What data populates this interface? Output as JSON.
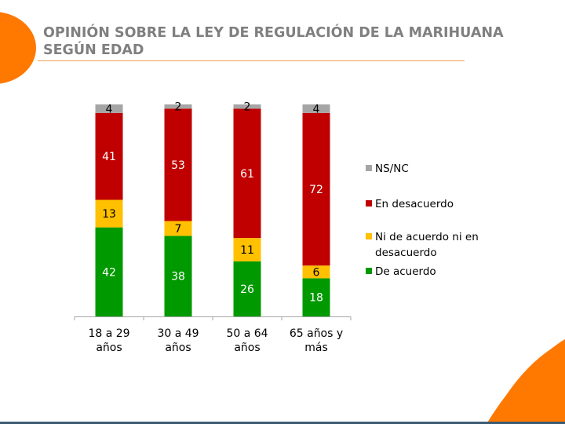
{
  "title_lines": [
    "OPINIÓN SOBRE LA LEY DE REGULACIÓN DE LA MARIHUANA",
    "SEGÚN EDAD"
  ],
  "colors": {
    "accent_orange": "#ff7800",
    "title_gray": "#7f7f7f",
    "ns_nc": "#a5a5a5",
    "desacuerdo": "#c00000",
    "neutral": "#ffc000",
    "acuerdo": "#009900"
  },
  "chart_data": {
    "type": "bar",
    "stacked": true,
    "title": "OPINIÓN SOBRE LA LEY DE REGULACIÓN DE LA MARIHUANA SEGÚN EDAD",
    "categories": [
      "18 a 29 años",
      "30 a 49 años",
      "50 a 64 años",
      "65 años y más"
    ],
    "category_lines": [
      [
        "18 a 29",
        "años"
      ],
      [
        "30 a 49",
        "años"
      ],
      [
        "50 a 64",
        "años"
      ],
      [
        "65 años y",
        "más"
      ]
    ],
    "series": [
      {
        "name": "De acuerdo",
        "color": "#009900",
        "label_color": "#ffffff",
        "values": [
          42,
          38,
          26,
          18
        ]
      },
      {
        "name": "Ni de acuerdo ni en desacuerdo",
        "color": "#ffc000",
        "label_color": "#000000",
        "values": [
          13,
          7,
          11,
          6
        ]
      },
      {
        "name": "En desacuerdo",
        "color": "#c00000",
        "label_color": "#ffffff",
        "values": [
          41,
          53,
          61,
          72
        ]
      },
      {
        "name": "NS/NC",
        "color": "#a5a5a5",
        "label_color": "#000000",
        "values": [
          4,
          2,
          2,
          4
        ]
      }
    ],
    "legend_order": [
      "NS/NC",
      "En desacuerdo",
      "Ni de acuerdo ni en desacuerdo",
      "De acuerdo"
    ],
    "legend_lines": [
      [
        "NS/NC"
      ],
      [
        "En desacuerdo"
      ],
      [
        "Ni de acuerdo ni en",
        "desacuerdo"
      ],
      [
        "De acuerdo"
      ]
    ],
    "legend_position": "right",
    "xlabel": "",
    "ylabel": "",
    "ylim": [
      0,
      100
    ],
    "grid": false
  }
}
